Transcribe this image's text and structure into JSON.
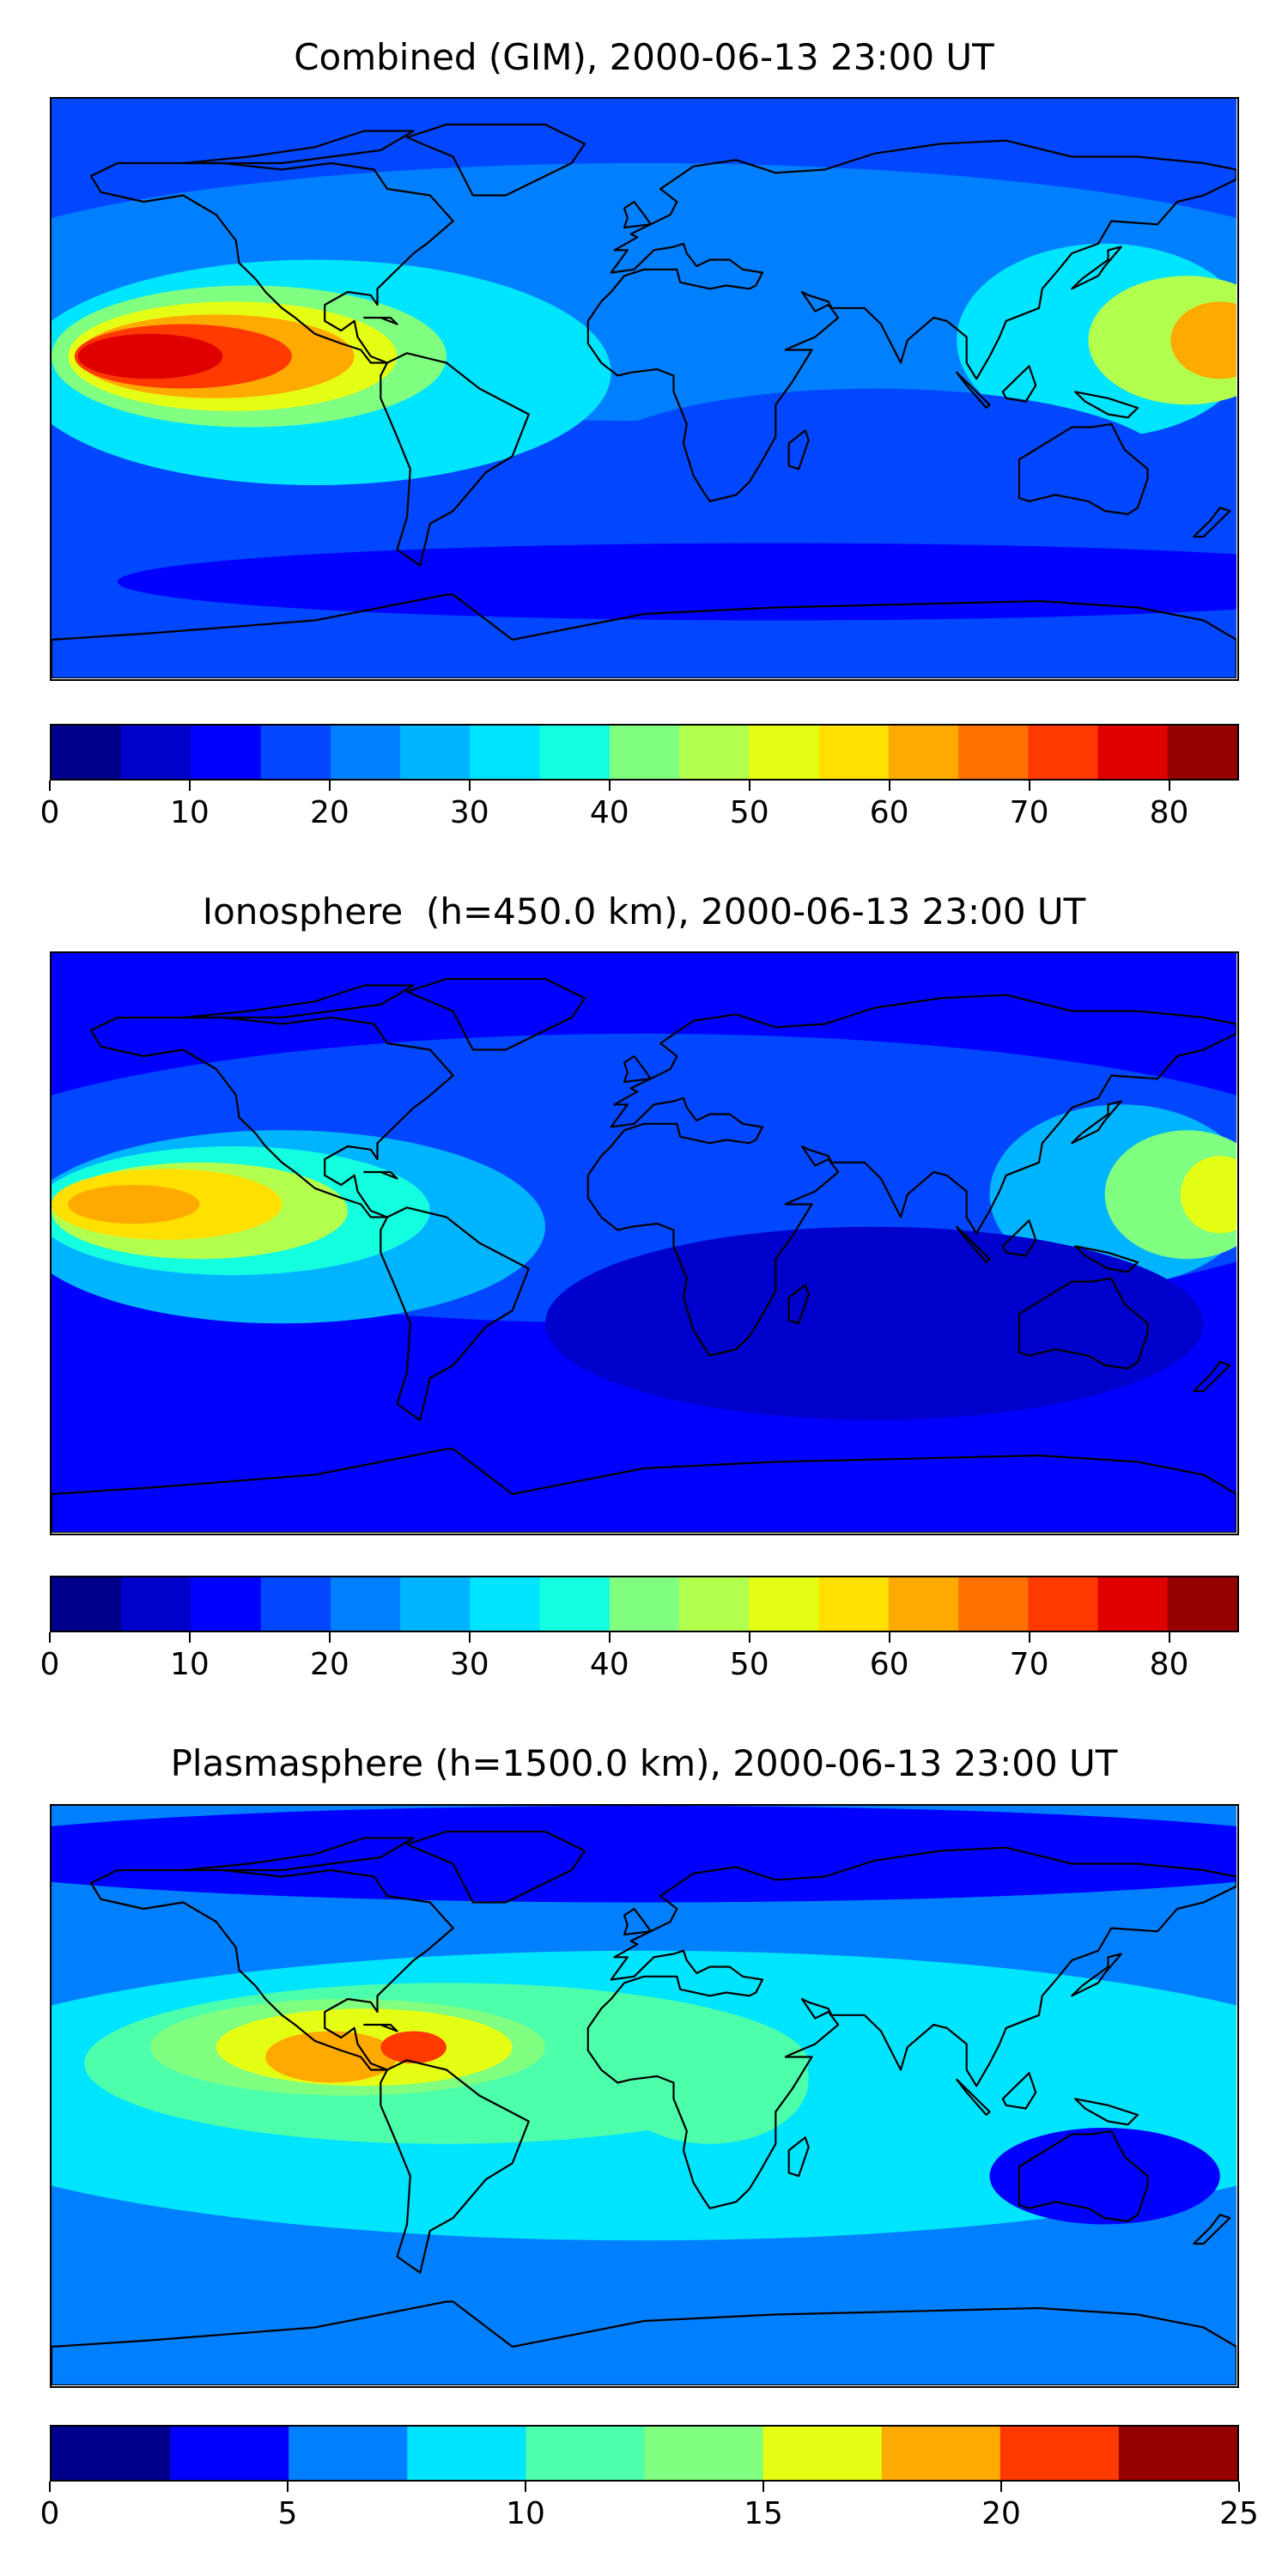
{
  "colormap": [
    "#00008b",
    "#0000cd",
    "#0000ff",
    "#0047ff",
    "#0080ff",
    "#00b4ff",
    "#00e5ff",
    "#14ffe0",
    "#4dffaa",
    "#80ff80",
    "#b3ff4d",
    "#e5ff14",
    "#ffe000",
    "#ffaa00",
    "#ff7000",
    "#ff3a00",
    "#e00000",
    "#960000"
  ],
  "panels": [
    {
      "title": "Combined (GIM), 2000-06-13 23:00 UT",
      "colorbar": {
        "min": 0,
        "max": 85,
        "step": 5,
        "ticks": [
          0,
          10,
          20,
          30,
          40,
          50,
          60,
          70,
          80
        ]
      },
      "fields": [
        {
          "value": 22,
          "lon": 0,
          "lat": 30,
          "rx": 220,
          "ry": 40
        },
        {
          "value": 30,
          "lon": -100,
          "lat": 5,
          "rx": 90,
          "ry": 35
        },
        {
          "value": 40,
          "lon": -120,
          "lat": 10,
          "rx": 60,
          "ry": 22
        },
        {
          "value": 50,
          "lon": -125,
          "lat": 10,
          "rx": 50,
          "ry": 17
        },
        {
          "value": 60,
          "lon": -130,
          "lat": 10,
          "rx": 42,
          "ry": 13
        },
        {
          "value": 70,
          "lon": -140,
          "lat": 10,
          "rx": 33,
          "ry": 10
        },
        {
          "value": 78,
          "lon": -150,
          "lat": 10,
          "rx": 22,
          "ry": 7
        },
        {
          "value": 30,
          "lon": 140,
          "lat": 15,
          "rx": 45,
          "ry": 30
        },
        {
          "value": 45,
          "lon": 165,
          "lat": 15,
          "rx": 30,
          "ry": 20
        },
        {
          "value": 60,
          "lon": 175,
          "lat": 15,
          "rx": 15,
          "ry": 12
        },
        {
          "value": 15,
          "lon": 70,
          "lat": -25,
          "rx": 90,
          "ry": 25
        },
        {
          "value": 10,
          "lon": 40,
          "lat": -60,
          "rx": 200,
          "ry": 12
        }
      ]
    },
    {
      "title": "Ionosphere  (h=450.0 km), 2000-06-13 23:00 UT",
      "colorbar": {
        "min": 0,
        "max": 85,
        "step": 5,
        "ticks": [
          0,
          10,
          20,
          30,
          40,
          50,
          60,
          70,
          80
        ]
      },
      "fields": [
        {
          "value": 15,
          "lon": 0,
          "lat": 20,
          "rx": 220,
          "ry": 45
        },
        {
          "value": 25,
          "lon": -110,
          "lat": 5,
          "rx": 80,
          "ry": 30
        },
        {
          "value": 35,
          "lon": -125,
          "lat": 10,
          "rx": 60,
          "ry": 20
        },
        {
          "value": 45,
          "lon": -135,
          "lat": 10,
          "rx": 45,
          "ry": 15
        },
        {
          "value": 55,
          "lon": -145,
          "lat": 12,
          "rx": 35,
          "ry": 11
        },
        {
          "value": 62,
          "lon": -155,
          "lat": 12,
          "rx": 20,
          "ry": 6
        },
        {
          "value": 28,
          "lon": 145,
          "lat": 15,
          "rx": 40,
          "ry": 28
        },
        {
          "value": 40,
          "lon": 165,
          "lat": 15,
          "rx": 25,
          "ry": 20
        },
        {
          "value": 50,
          "lon": 175,
          "lat": 15,
          "rx": 12,
          "ry": 12
        },
        {
          "value": 5,
          "lon": 70,
          "lat": -25,
          "rx": 100,
          "ry": 30
        }
      ]
    },
    {
      "title": "Plasmasphere (h=1500.0 km), 2000-06-13 23:00 UT",
      "colorbar": {
        "min": 0,
        "max": 25,
        "step": 2.5,
        "ticks": [
          0,
          5,
          10,
          15,
          20,
          25
        ]
      },
      "fields": [
        {
          "value": 8,
          "lon": 0,
          "lat": 0,
          "rx": 230,
          "ry": 45
        },
        {
          "value": 11,
          "lon": -60,
          "lat": 10,
          "rx": 110,
          "ry": 25
        },
        {
          "value": 13,
          "lon": -90,
          "lat": 15,
          "rx": 60,
          "ry": 15
        },
        {
          "value": 15,
          "lon": -85,
          "lat": 15,
          "rx": 45,
          "ry": 12
        },
        {
          "value": 18,
          "lon": -95,
          "lat": 12,
          "rx": 20,
          "ry": 8
        },
        {
          "value": 21,
          "lon": -70,
          "lat": 15,
          "rx": 10,
          "ry": 5
        },
        {
          "value": 11,
          "lon": 20,
          "lat": 5,
          "rx": 30,
          "ry": 20
        },
        {
          "value": 3,
          "lon": 0,
          "lat": 75,
          "rx": 220,
          "ry": 15
        },
        {
          "value": 4,
          "lon": 140,
          "lat": -25,
          "rx": 35,
          "ry": 15
        }
      ]
    }
  ]
}
